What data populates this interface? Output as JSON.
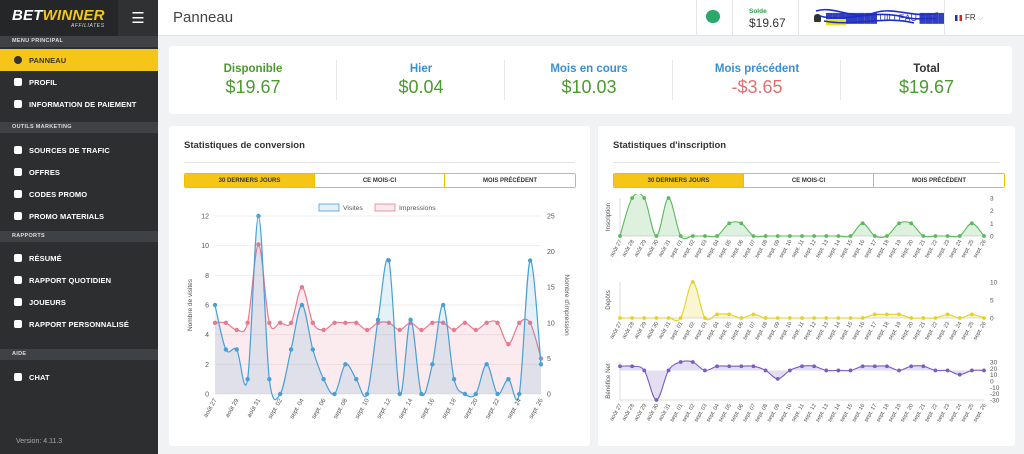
{
  "sidebar": {
    "brand": {
      "part1": "BET",
      "part2": "WINNER",
      "sub": "AFFILIATES"
    },
    "sections": {
      "main": "MENU PRINCIPAL",
      "marketing": "OUTILS MARKETING",
      "reports": "RAPPORTS",
      "help": "AIDE"
    },
    "items": [
      {
        "label": "PANNEAU",
        "icon": "dashboard-icon"
      },
      {
        "label": "PROFIL",
        "icon": "user-icon"
      },
      {
        "label": "INFORMATION DE PAIEMENT",
        "icon": "payment-icon"
      },
      {
        "label": "SOURCES DE TRAFIC",
        "icon": "traffic-icon"
      },
      {
        "label": "OFFRES",
        "icon": "tag-icon"
      },
      {
        "label": "CODES PROMO",
        "icon": "promo-code-icon"
      },
      {
        "label": "PROMO MATERIALS",
        "icon": "image-icon"
      },
      {
        "label": "RÉSUMÉ",
        "icon": "summary-icon"
      },
      {
        "label": "RAPPORT QUOTIDIEN",
        "icon": "daily-report-icon"
      },
      {
        "label": "JOUEURS",
        "icon": "players-icon"
      },
      {
        "label": "RAPPORT PERSONNALISÉ",
        "icon": "custom-report-icon"
      },
      {
        "label": "CHAT",
        "icon": "chat-icon"
      }
    ],
    "version": "Version: 4.11.3"
  },
  "header": {
    "title": "Panneau",
    "balance_label": "Solde",
    "balance_value": "$19.67",
    "user_name": "████████ UILLEAU ████",
    "language": "FR"
  },
  "stats": [
    {
      "label": "Disponible",
      "value": "$19.67",
      "label_color": "#4a9a2e",
      "value_color": "#4a9a2e"
    },
    {
      "label": "Hier",
      "value": "$0.04",
      "label_color": "#3a8fd0",
      "value_color": "#4a9a2e"
    },
    {
      "label": "Mois en cours",
      "value": "$10.03",
      "label_color": "#3a8fd0",
      "value_color": "#4a9a2e"
    },
    {
      "label": "Mois précédent",
      "value": "-$3.65",
      "label_color": "#3a8fd0",
      "value_color": "#e07070"
    },
    {
      "label": "Total",
      "value": "$19.67",
      "label_color": "#333333",
      "value_color": "#4a9a2e"
    }
  ],
  "conversion": {
    "title": "Statistiques de conversion",
    "tabs": [
      "30 DERNIERS JOURS",
      "CE MOIS-CI",
      "MOIS PRÉCÉDENT"
    ]
  },
  "inscription": {
    "title": "Statistiques d'inscription",
    "tabs": [
      "30 DERNIERS JOURS",
      "CE MOIS-CI",
      "MOIS PRÉCÉDENT"
    ]
  },
  "chart_data": [
    {
      "type": "area",
      "legend": [
        "Visites",
        "Impressions"
      ],
      "legend_position": "top-center",
      "ylabel": "Nombre de visites",
      "y2label": "Nombre d'impression",
      "ylim": [
        0,
        12
      ],
      "y2lim": [
        0,
        25
      ],
      "yticks": [
        0,
        2,
        4,
        6,
        8,
        10,
        12
      ],
      "y2ticks": [
        0,
        5,
        10,
        15,
        20,
        25
      ],
      "x": [
        "août 27",
        "août 28",
        "août 29",
        "août 30",
        "août 31",
        "sept. 01",
        "sept. 02",
        "sept. 03",
        "sept. 04",
        "sept. 05",
        "sept. 06",
        "sept. 07",
        "sept. 08",
        "sept. 09",
        "sept. 10",
        "sept. 11",
        "sept. 12",
        "sept. 13",
        "sept. 14",
        "sept. 15",
        "sept. 16",
        "sept. 17",
        "sept. 18",
        "sept. 19",
        "sept. 20",
        "sept. 21",
        "sept. 22",
        "sept. 23",
        "sept. 24",
        "sept. 25",
        "sept. 26"
      ],
      "xlabels_shown": [
        "août 27",
        "août 29",
        "août 31",
        "sept. 02",
        "sept. 04",
        "sept. 06",
        "sept. 08",
        "sept. 10",
        "sept. 12",
        "sept. 14",
        "sept. 16",
        "sept. 18",
        "sept. 20",
        "sept. 22",
        "sept. 24",
        "sept. 26"
      ],
      "series": [
        {
          "name": "Visites",
          "color": "#4a9fd4",
          "axis": "left",
          "values": [
            6,
            3,
            3,
            1,
            12,
            1,
            0,
            3,
            6,
            3,
            1,
            0,
            2,
            1,
            0,
            5,
            9,
            0,
            5,
            0,
            2,
            6,
            1,
            0,
            0,
            2,
            0,
            1,
            0,
            9,
            2
          ]
        },
        {
          "name": "Impressions",
          "color": "#e67a8f",
          "axis": "right",
          "values": [
            10,
            10,
            9,
            10,
            21,
            10,
            10,
            10,
            15,
            10,
            9,
            10,
            10,
            10,
            9,
            10,
            10,
            9,
            10,
            9,
            10,
            10,
            9,
            10,
            9,
            10,
            10,
            7,
            10,
            10,
            5
          ]
        }
      ]
    },
    {
      "type": "area",
      "ylabel": "Inscription",
      "y2ticks": [
        0,
        1,
        2,
        3
      ],
      "color": "#5cb85c",
      "x": [
        "août 27",
        "août 28",
        "août 29",
        "août 30",
        "août 31",
        "sept. 01",
        "sept. 02",
        "sept. 03",
        "sept. 04",
        "sept. 05",
        "sept. 06",
        "sept. 07",
        "sept. 08",
        "sept. 09",
        "sept. 10",
        "sept. 11",
        "sept. 12",
        "sept. 13",
        "sept. 14",
        "sept. 15",
        "sept. 16",
        "sept. 17",
        "sept. 18",
        "sept. 19",
        "sept. 20",
        "sept. 21",
        "sept. 22",
        "sept. 23",
        "sept. 24",
        "sept. 25",
        "sept. 26"
      ],
      "values": [
        0,
        3,
        3,
        0,
        3,
        0,
        0,
        0,
        0,
        1,
        1,
        0,
        0,
        0,
        0,
        0,
        0,
        0,
        0,
        0,
        1,
        0,
        0,
        1,
        1,
        0,
        0,
        0,
        0,
        1,
        0
      ]
    },
    {
      "type": "area",
      "ylabel": "Dépôts",
      "y2ticks": [
        0,
        5,
        10
      ],
      "color": "#e6d21f",
      "x": [
        "août 27",
        "août 28",
        "août 29",
        "août 30",
        "août 31",
        "sept. 01",
        "sept. 02",
        "sept. 03",
        "sept. 04",
        "sept. 05",
        "sept. 06",
        "sept. 07",
        "sept. 08",
        "sept. 09",
        "sept. 10",
        "sept. 11",
        "sept. 12",
        "sept. 13",
        "sept. 14",
        "sept. 15",
        "sept. 16",
        "sept. 17",
        "sept. 18",
        "sept. 19",
        "sept. 20",
        "sept. 21",
        "sept. 22",
        "sept. 23",
        "sept. 24",
        "sept. 25",
        "sept. 26"
      ],
      "values": [
        0,
        0,
        0,
        0,
        0,
        0,
        10,
        0,
        1,
        1,
        0,
        1,
        0,
        0,
        0,
        0,
        0,
        0,
        0,
        0,
        0,
        1,
        1,
        1,
        0,
        0,
        0,
        1,
        0,
        1,
        0
      ]
    },
    {
      "type": "area",
      "ylabel": "Bénéfice Net",
      "color": "#7a5cc4",
      "y2ticks": [
        "-30",
        "-20",
        "-10",
        "0",
        "10",
        "20",
        "30"
      ],
      "x": [
        "août 27",
        "août 28",
        "août 29",
        "août 30",
        "août 31",
        "sept. 01",
        "sept. 02",
        "sept. 03",
        "sept. 04",
        "sept. 05",
        "sept. 06",
        "sept. 07",
        "sept. 08",
        "sept. 09",
        "sept. 10",
        "sept. 11",
        "sept. 12",
        "sept. 13",
        "sept. 14",
        "sept. 15",
        "sept. 16",
        "sept. 17",
        "sept. 18",
        "sept. 19",
        "sept. 20",
        "sept. 21",
        "sept. 22",
        "sept. 23",
        "sept. 24",
        "sept. 25",
        "sept. 26"
      ],
      "values": [
        2,
        2,
        0,
        -14,
        0,
        4,
        4,
        0,
        2,
        2,
        2,
        2,
        0,
        -4,
        0,
        2,
        2,
        0,
        0,
        0,
        2,
        2,
        2,
        0,
        2,
        2,
        0,
        0,
        -2,
        0,
        0
      ]
    }
  ]
}
